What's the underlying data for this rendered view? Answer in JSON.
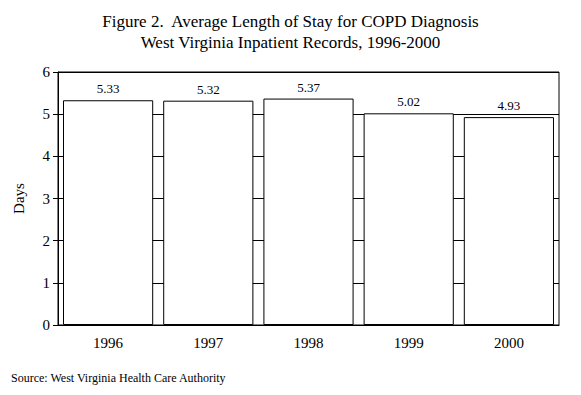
{
  "chart_data": {
    "type": "bar",
    "title": "Figure 2.  Average Length of Stay for COPD Diagnosis\nWest Virginia Inpatient Records, 1996-2000",
    "y_label": "Days",
    "source": "Source: West Virginia Health Care Authority",
    "categories": [
      "1996",
      "1997",
      "1998",
      "1999",
      "2000"
    ],
    "values": [
      5.33,
      5.32,
      5.37,
      5.02,
      4.93
    ],
    "color": "#ffffff",
    "ylim": [
      0,
      6
    ],
    "yticks": [
      0,
      1,
      2,
      3,
      4,
      5,
      6
    ],
    "grid": true,
    "data_labels": true
  }
}
